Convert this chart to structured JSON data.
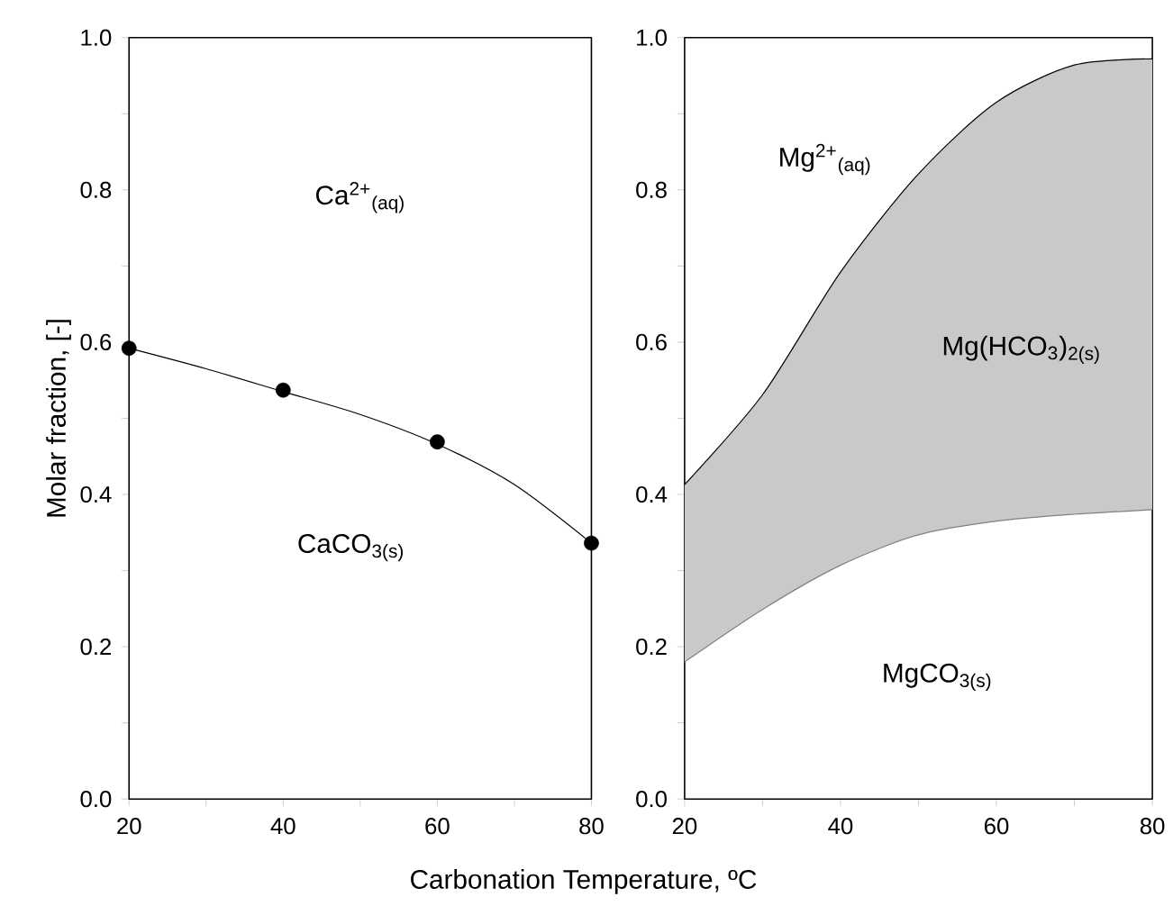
{
  "chart_data": [
    {
      "type": "line",
      "xlabel": "Carbonation Temperature, ºC",
      "ylabel": "Molar fraction, [-]",
      "x": [
        20,
        40,
        60,
        80
      ],
      "xlim": [
        20,
        80
      ],
      "ylim": [
        0,
        1
      ],
      "xticks": [
        20,
        {
          "value": 30,
          "label": null
        },
        40,
        {
          "value": 50,
          "label": null
        },
        60,
        {
          "value": 70,
          "label": null
        },
        80
      ],
      "yticks": [
        {
          "value": 0,
          "label": "0.0"
        },
        {
          "value": 0.1,
          "label": null
        },
        {
          "value": 0.2,
          "label": "0.2"
        },
        {
          "value": 0.3,
          "label": null
        },
        {
          "value": 0.4,
          "label": "0.4"
        },
        {
          "value": 0.5,
          "label": null
        },
        {
          "value": 0.6,
          "label": "0.6"
        },
        {
          "value": 0.7,
          "label": null
        },
        {
          "value": 0.8,
          "label": "0.8"
        },
        {
          "value": 0.9,
          "label": null
        },
        {
          "value": 1,
          "label": "1.0"
        }
      ],
      "series": [
        {
          "color": "#000000",
          "x": [
            20,
            30,
            40,
            50,
            60,
            70,
            80
          ],
          "values": [
            0.592,
            0.565,
            0.535,
            0.505,
            0.466,
            0.413,
            0.336
          ]
        },
        {
          "type": "scatter",
          "color": "#000000",
          "values": [
            0.592,
            0.537,
            0.469,
            0.336
          ]
        }
      ],
      "annotations": [
        "Ca$^{2+}$$_{(aq)}$",
        "CaCO$_{3(s)}$"
      ]
    },
    {
      "type": "line",
      "x": [
        20,
        30,
        40,
        50,
        60,
        70,
        80
      ],
      "xlim": [
        20,
        80
      ],
      "ylim": [
        0,
        1
      ],
      "xticks": [
        20,
        {
          "value": 30,
          "label": null
        },
        40,
        {
          "value": 50,
          "label": null
        },
        60,
        {
          "value": 70,
          "label": null
        },
        80
      ],
      "yticks": [
        {
          "value": 0,
          "label": "0.0"
        },
        {
          "value": 0.1,
          "label": null
        },
        {
          "value": 0.2,
          "label": "0.2"
        },
        {
          "value": 0.3,
          "label": null
        },
        {
          "value": 0.4,
          "label": "0.4"
        },
        {
          "value": 0.5,
          "label": null
        },
        {
          "value": 0.6,
          "label": "0.6"
        },
        {
          "value": 0.7,
          "label": null
        },
        {
          "value": 0.8,
          "label": "0.8"
        },
        {
          "value": 0.9,
          "label": null
        },
        {
          "value": 1,
          "label": "1.0"
        }
      ],
      "series": [
        {
          "color": "#000000",
          "values": [
            0.413,
            0.531,
            0.692,
            0.821,
            0.915,
            0.964,
            0.972
          ],
          "lower": [
            0.18,
            0.249,
            0.307,
            0.347,
            0.365,
            0.374,
            0.38
          ],
          "upper": [
            0.413,
            0.531,
            0.692,
            0.821,
            0.915,
            0.964,
            0.972
          ]
        },
        {
          "color": "#808080",
          "values": [
            0.18,
            0.249,
            0.307,
            0.347,
            0.365,
            0.374,
            0.38
          ]
        }
      ],
      "annotations": [
        "Mg$^{2+}$$_{(aq)}$",
        "Mg(HCO$_{3}$)$_{2(s)}$",
        "MgCO$_{3(s)}$"
      ]
    }
  ]
}
